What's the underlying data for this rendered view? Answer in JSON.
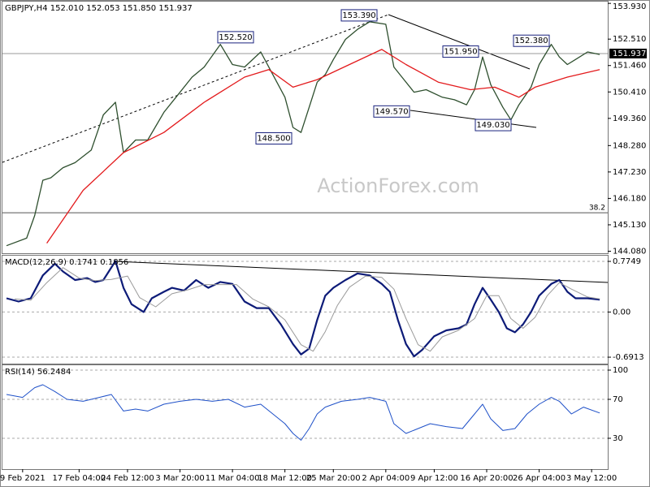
{
  "chart_data": [
    {
      "type": "line",
      "title": "GBPJPY,H4  152.010 152.053 151.850 151.937",
      "watermark": "ActionForex.com",
      "xlim": [
        0,
        150
      ],
      "ylim": [
        144.0,
        154.0
      ],
      "yticks": [
        {
          "value": 153.93,
          "label": "153.930"
        },
        {
          "value": 152.51,
          "label": "152.510"
        },
        {
          "value": 151.46,
          "label": "151.460"
        },
        {
          "value": 150.41,
          "label": "150.410"
        },
        {
          "value": 149.36,
          "label": "149.360"
        },
        {
          "value": 148.28,
          "label": "148.280"
        },
        {
          "value": 147.23,
          "label": "147.230"
        },
        {
          "value": 146.18,
          "label": "146.180"
        },
        {
          "value": 145.13,
          "label": "145.130"
        },
        {
          "value": 144.08,
          "label": "144.080"
        }
      ],
      "last_price": {
        "value": 151.937,
        "label": "151.937"
      },
      "fib_level": {
        "value": 145.61,
        "label": "38.2"
      },
      "annotations": [
        {
          "value": 153.39,
          "label": "153.390"
        },
        {
          "value": 152.52,
          "label": "152.520"
        },
        {
          "value": 151.95,
          "label": "151.950"
        },
        {
          "value": 152.38,
          "label": "152.380"
        },
        {
          "value": 149.57,
          "label": "149.570"
        },
        {
          "value": 148.5,
          "label": "148.500"
        },
        {
          "value": 149.03,
          "label": "149.030"
        }
      ],
      "series": [
        {
          "color": "#2e4f2e",
          "x": [
            1,
            6,
            8,
            10,
            12,
            15,
            18,
            22,
            25,
            28,
            30,
            33,
            36,
            40,
            43,
            47,
            50,
            54,
            57,
            60,
            64,
            67,
            70,
            72,
            74,
            76,
            78,
            80,
            82,
            85,
            88,
            91,
            95,
            97,
            99,
            102,
            105,
            109,
            112,
            115,
            117,
            119,
            121,
            124,
            126,
            128,
            131,
            133,
            136,
            138,
            140,
            142,
            145,
            148
          ],
          "values": [
            144.3,
            144.6,
            145.5,
            146.9,
            147.0,
            147.4,
            147.6,
            148.1,
            149.5,
            150.0,
            148.0,
            148.5,
            148.5,
            149.6,
            150.2,
            151.0,
            151.4,
            152.3,
            151.5,
            151.4,
            152.0,
            151.1,
            150.2,
            149.0,
            148.8,
            149.8,
            150.8,
            151.1,
            151.7,
            152.5,
            152.9,
            153.2,
            153.1,
            151.4,
            151.0,
            150.4,
            150.5,
            150.2,
            150.1,
            149.9,
            150.5,
            151.8,
            150.7,
            149.8,
            149.3,
            149.9,
            150.6,
            151.5,
            152.3,
            151.8,
            151.5,
            151.7,
            152.0,
            151.9
          ]
        },
        {
          "color": "#e31a1c",
          "x": [
            11,
            20,
            30,
            40,
            50,
            60,
            66,
            72,
            78,
            86,
            94,
            100,
            108,
            116,
            122,
            128,
            132,
            140,
            148
          ],
          "values": [
            144.4,
            146.5,
            148.0,
            148.8,
            150.0,
            151.0,
            151.3,
            150.6,
            150.9,
            151.5,
            152.1,
            151.5,
            150.8,
            150.5,
            150.6,
            150.2,
            150.6,
            151.0,
            151.3
          ]
        }
      ]
    },
    {
      "type": "line",
      "title": "MACD(12,26,9) 0.1741 0.1856",
      "xlim": [
        0,
        150
      ],
      "ylim": [
        -0.79,
        0.85
      ],
      "grid": true,
      "yticks": [
        0.7749,
        {
          "value": 0,
          "label": "0.00"
        },
        -0.6913
      ],
      "series": [
        {
          "color": "#0d1b78",
          "width": 2.2,
          "x": [
            1,
            4,
            7,
            10,
            13,
            15,
            18,
            21,
            23,
            25,
            28,
            30,
            32,
            35,
            37,
            40,
            42,
            45,
            48,
            51,
            54,
            57,
            60,
            63,
            66,
            69,
            72,
            74,
            76,
            78,
            80,
            82,
            85,
            88,
            91,
            94,
            96,
            98,
            100,
            102,
            104,
            107,
            110,
            113,
            115,
            117,
            119,
            121,
            123,
            125,
            127,
            129,
            131,
            133,
            136,
            138,
            140,
            142,
            145,
            148
          ],
          "values": [
            0.21,
            0.16,
            0.21,
            0.56,
            0.74,
            0.62,
            0.49,
            0.52,
            0.46,
            0.49,
            0.78,
            0.37,
            0.12,
            0.0,
            0.21,
            0.31,
            0.37,
            0.33,
            0.49,
            0.37,
            0.46,
            0.43,
            0.16,
            0.06,
            0.06,
            -0.19,
            -0.49,
            -0.65,
            -0.56,
            -0.12,
            0.25,
            0.37,
            0.49,
            0.59,
            0.56,
            0.43,
            0.31,
            -0.12,
            -0.49,
            -0.68,
            -0.58,
            -0.37,
            -0.28,
            -0.25,
            -0.19,
            0.12,
            0.37,
            0.19,
            0.0,
            -0.25,
            -0.31,
            -0.19,
            0.0,
            0.25,
            0.43,
            0.49,
            0.31,
            0.21,
            0.21,
            0.19
          ]
        },
        {
          "color": "#9a9a9a",
          "width": 1,
          "x": [
            3,
            7,
            11,
            15,
            19,
            23,
            27,
            31,
            34,
            38,
            42,
            46,
            50,
            54,
            58,
            62,
            66,
            70,
            74,
            77,
            80,
            83,
            86,
            90,
            94,
            97,
            100,
            103,
            106,
            109,
            113,
            117,
            120,
            123,
            126,
            129,
            132,
            135,
            138,
            141,
            145,
            148
          ],
          "values": [
            0.2,
            0.18,
            0.45,
            0.68,
            0.52,
            0.48,
            0.5,
            0.55,
            0.22,
            0.08,
            0.28,
            0.34,
            0.42,
            0.42,
            0.42,
            0.2,
            0.08,
            -0.12,
            -0.5,
            -0.6,
            -0.3,
            0.1,
            0.38,
            0.55,
            0.53,
            0.35,
            -0.1,
            -0.5,
            -0.6,
            -0.38,
            -0.28,
            -0.1,
            0.25,
            0.25,
            -0.1,
            -0.25,
            -0.08,
            0.25,
            0.45,
            0.35,
            0.23,
            0.2
          ]
        }
      ]
    },
    {
      "type": "line",
      "title": "RSI(14) 56.2484",
      "xlim": [
        0,
        150
      ],
      "ylim": [
        -1.7,
        105
      ],
      "grid": true,
      "yticks": [
        100,
        70,
        30
      ],
      "xticks": [
        {
          "value": 5,
          "label": "9 Feb 2021"
        },
        {
          "value": 19,
          "label": "17 Feb 04:00"
        },
        {
          "value": 31,
          "label": "24 Feb 12:00"
        },
        {
          "value": 44,
          "label": "3 Mar 20:00"
        },
        {
          "value": 57,
          "label": "11 Mar 04:00"
        },
        {
          "value": 70,
          "label": "18 Mar 12:00"
        },
        {
          "value": 82,
          "label": "25 Mar 20:00"
        },
        {
          "value": 95,
          "label": "2 Apr 04:00"
        },
        {
          "value": 107,
          "label": "9 Apr 12:00"
        },
        {
          "value": 120,
          "label": "16 Apr 20:00"
        },
        {
          "value": 133,
          "label": "26 Apr 04:00"
        },
        {
          "value": 146,
          "label": "3 May 12:00"
        }
      ],
      "series": [
        {
          "color": "#1e50c8",
          "width": 1,
          "x": [
            1,
            5,
            8,
            10,
            13,
            16,
            20,
            24,
            27,
            30,
            33,
            36,
            40,
            44,
            48,
            52,
            56,
            60,
            64,
            67,
            70,
            72,
            74,
            76,
            78,
            80,
            84,
            88,
            91,
            95,
            97,
            100,
            103,
            106,
            110,
            114,
            117,
            119,
            121,
            124,
            127,
            130,
            133,
            136,
            138,
            141,
            144,
            148
          ],
          "values": [
            75,
            72,
            82,
            85,
            78,
            70,
            68,
            72,
            75,
            58,
            60,
            58,
            65,
            68,
            70,
            68,
            70,
            62,
            65,
            55,
            45,
            35,
            28,
            40,
            55,
            62,
            68,
            70,
            72,
            68,
            45,
            35,
            40,
            45,
            42,
            40,
            55,
            65,
            50,
            38,
            40,
            55,
            65,
            72,
            68,
            55,
            62,
            56
          ]
        }
      ]
    }
  ]
}
